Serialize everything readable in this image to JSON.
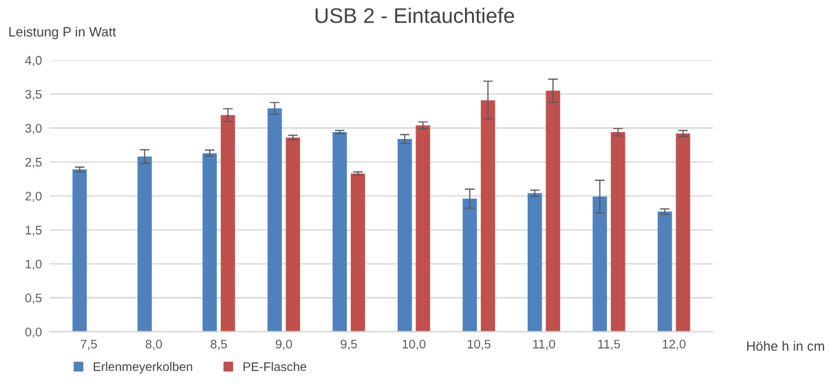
{
  "chart_data": {
    "type": "bar",
    "title": "USB 2 - Eintauchtiefe",
    "xlabel": "Höhe h in cm",
    "ylabel": "Leistung P in Watt",
    "categories": [
      "7,5",
      "8,0",
      "8,5",
      "9,0",
      "9,5",
      "10,0",
      "10,5",
      "11,0",
      "11,5",
      "12,0"
    ],
    "series": [
      {
        "name": "Erlenmeyerkolben",
        "color": "#4f81bd",
        "values": [
          2.39,
          2.58,
          2.63,
          3.29,
          2.94,
          2.84,
          1.96,
          2.04,
          1.99,
          1.77
        ],
        "errors": [
          0.035,
          0.1,
          0.045,
          0.086,
          0.024,
          0.064,
          0.14,
          0.045,
          0.24,
          0.04
        ]
      },
      {
        "name": "PE-Flasche",
        "color": "#c0504d",
        "values": [
          null,
          null,
          3.19,
          2.86,
          2.33,
          3.04,
          3.41,
          3.55,
          2.94,
          2.92
        ],
        "errors": [
          null,
          null,
          0.095,
          0.034,
          0.024,
          0.05,
          0.28,
          0.17,
          0.054,
          0.045
        ]
      }
    ],
    "ylim": [
      0,
      4
    ],
    "yticks": [
      {
        "value": 0,
        "label": "0,0"
      },
      {
        "value": 0.5,
        "label": "0,5"
      },
      {
        "value": 1,
        "label": "1,0"
      },
      {
        "value": 1.5,
        "label": "1,5"
      },
      {
        "value": 2,
        "label": "2,0"
      },
      {
        "value": 2.5,
        "label": "2,5"
      },
      {
        "value": 3,
        "label": "3,0"
      },
      {
        "value": 3.5,
        "label": "3,5"
      },
      {
        "value": 4,
        "label": "4,0"
      }
    ],
    "grid": "y",
    "legend": "bottom left"
  }
}
